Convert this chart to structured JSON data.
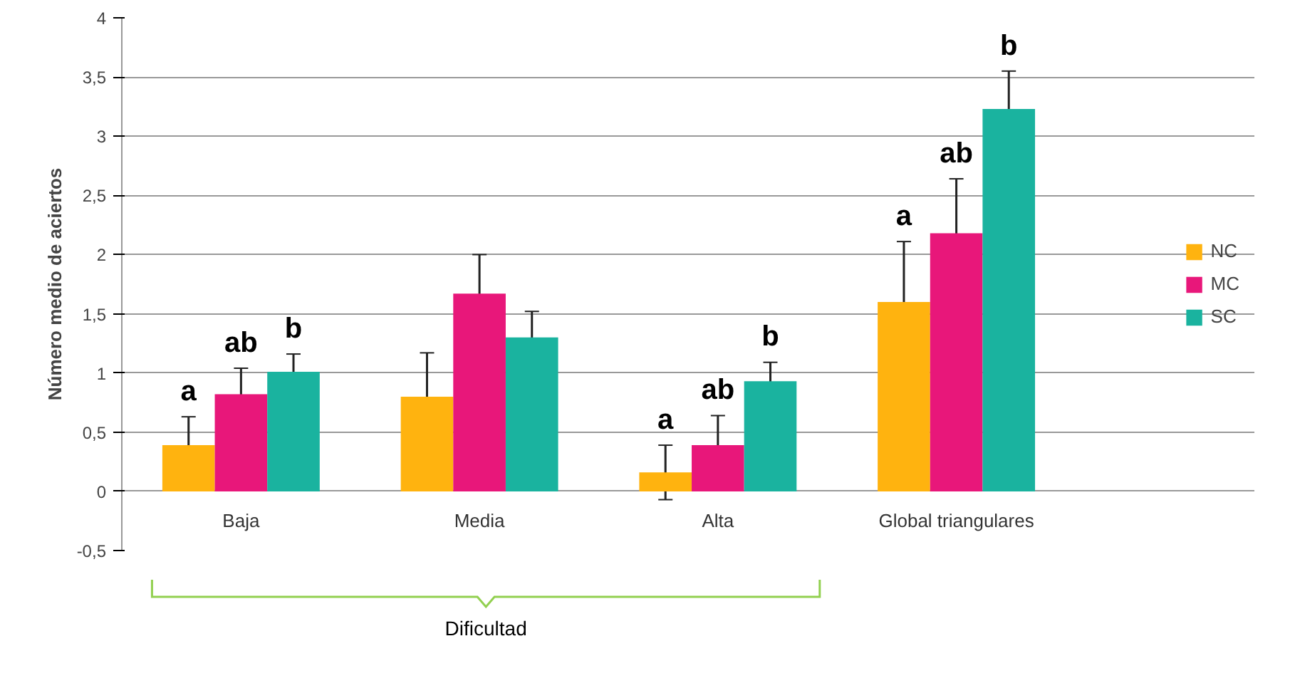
{
  "chart_data": {
    "type": "bar",
    "ylabel": "Número medio de aciertos",
    "categories": [
      "Baja",
      "Media",
      "Alta",
      "Global triangulares"
    ],
    "series": [
      {
        "name": "NC",
        "color": "#ffb30f",
        "values": [
          0.39,
          0.8,
          0.16,
          1.6
        ],
        "errors": [
          0.24,
          0.37,
          0.23,
          0.51
        ],
        "value_labels": [
          "a",
          null,
          "a",
          "a"
        ]
      },
      {
        "name": "MC",
        "color": "#e8177a",
        "values": [
          0.82,
          1.67,
          0.39,
          2.18
        ],
        "errors": [
          0.22,
          0.33,
          0.25,
          0.46
        ],
        "value_labels": [
          "ab",
          null,
          "ab",
          "ab"
        ]
      },
      {
        "name": "SC",
        "color": "#1ab39f",
        "values": [
          1.01,
          1.3,
          0.93,
          3.23
        ],
        "errors": [
          0.15,
          0.22,
          0.16,
          0.32
        ],
        "value_labels": [
          "b",
          null,
          "b",
          "b"
        ]
      }
    ],
    "ylim": [
      -0.5,
      4
    ],
    "yticks": [
      {
        "value": -0.5,
        "label": "-0,5"
      },
      0,
      {
        "value": 0.5,
        "label": "0,5"
      },
      1,
      {
        "value": 1.5,
        "label": "1,5"
      },
      2,
      {
        "value": 2.5,
        "label": "2,5"
      },
      3,
      {
        "value": 3.5,
        "label": "3,5"
      },
      4
    ],
    "grid": "y",
    "legend": "right",
    "annotations": [
      "Dificultad"
    ]
  }
}
